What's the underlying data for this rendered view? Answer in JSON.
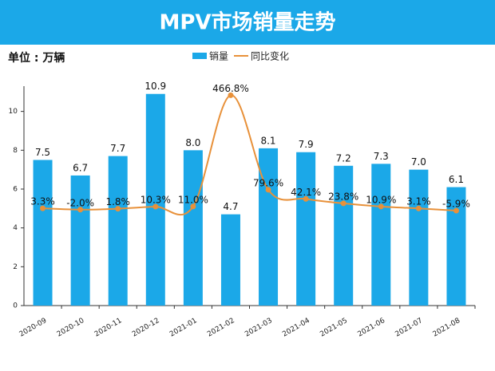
{
  "chart_data": {
    "type": "bar-line",
    "title": "MPV市场销量走势",
    "unit_label": "单位 : 万辆",
    "categories": [
      "2020-09",
      "2020-10",
      "2020-11",
      "2020-12",
      "2021-01",
      "2021-02",
      "2021-03",
      "2021-04",
      "2021-05",
      "2021-06",
      "2021-07",
      "2021-08"
    ],
    "series": [
      {
        "name": "销量",
        "type": "bar",
        "color": "#1ba8e8",
        "values": [
          7.5,
          6.7,
          7.7,
          10.9,
          8.0,
          4.7,
          8.1,
          7.9,
          7.2,
          7.3,
          7.0,
          6.1
        ],
        "value_labels": [
          "7.5",
          "6.7",
          "7.7",
          "10.9",
          "8.0",
          "4.7",
          "8.1",
          "7.9",
          "7.2",
          "7.3",
          "7.0",
          "6.1"
        ]
      },
      {
        "name": "同比变化",
        "type": "line",
        "axis": "y2",
        "color": "#e8913a",
        "values": [
          3.3,
          -2.0,
          1.8,
          10.3,
          11.0,
          466.8,
          79.6,
          42.1,
          23.8,
          10.9,
          3.1,
          -5.9
        ],
        "value_labels": [
          "3.3%",
          "-2.0%",
          "1.8%",
          "10.3%",
          "11.0%",
          "466.8%",
          "79.6%",
          "42.1%",
          "23.8%",
          "10.9%",
          "3.1%",
          "-5.9%"
        ]
      }
    ],
    "ylim": [
      0,
      11.3
    ],
    "yticks": [
      0,
      2,
      4,
      6,
      8,
      10
    ],
    "y2lim": [
      -395,
      504
    ],
    "legend": "top"
  }
}
